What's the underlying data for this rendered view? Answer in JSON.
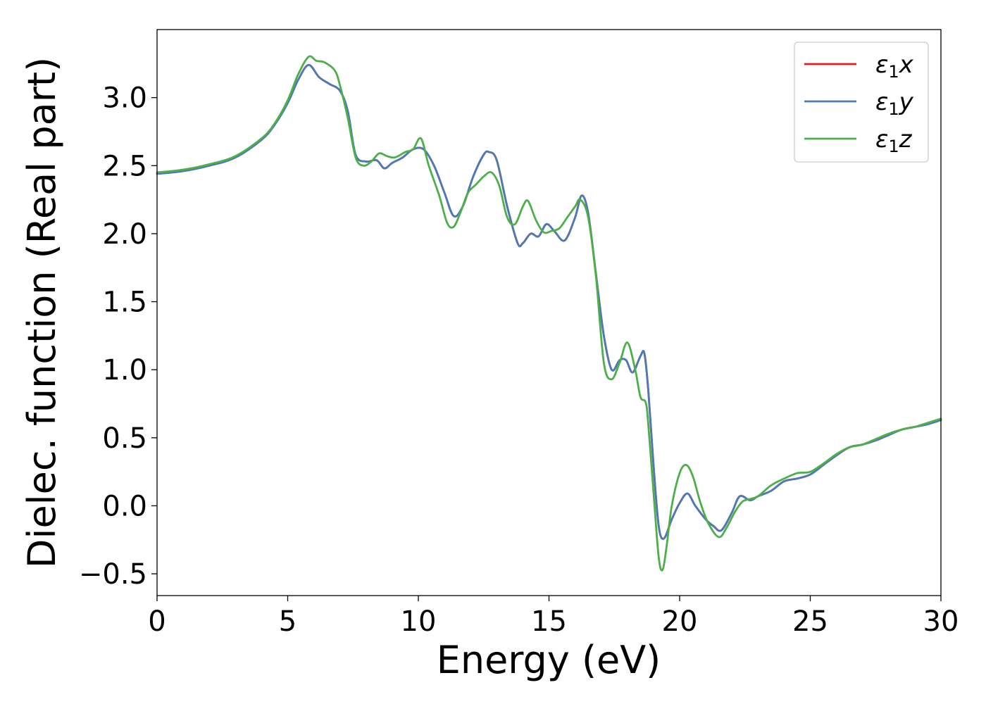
{
  "chart_data": {
    "type": "line",
    "xlabel": "Energy (eV)",
    "ylabel": "Dielec. function (Real part)",
    "xlim": [
      0,
      30
    ],
    "ylim": [
      -0.66,
      3.5
    ],
    "x_ticks": [
      0,
      5,
      10,
      15,
      20,
      25,
      30
    ],
    "x_tick_labels": [
      "0",
      "5",
      "10",
      "15",
      "20",
      "25",
      "30"
    ],
    "y_ticks": [
      -0.5,
      0.0,
      0.5,
      1.0,
      1.5,
      2.0,
      2.5,
      3.0
    ],
    "y_tick_labels": [
      "−0.5",
      "0.0",
      "0.5",
      "1.0",
      "1.5",
      "2.0",
      "2.5",
      "3.0"
    ],
    "grid": false,
    "legend_position": "top-right",
    "series": [
      {
        "name": "ε1x",
        "legend_symbol": "ε",
        "legend_sub": "1",
        "legend_var": "x",
        "color": "#e41a1c",
        "x": [
          0,
          1,
          2,
          3,
          4,
          4.5,
          5,
          5.4,
          5.8,
          6.2,
          6.6,
          7.0,
          7.3,
          7.6,
          8.0,
          8.4,
          8.7,
          9.0,
          9.4,
          9.8,
          10.2,
          10.6,
          11.0,
          11.35,
          11.7,
          12.1,
          12.5,
          12.7,
          13.0,
          13.4,
          13.8,
          14.0,
          14.3,
          14.6,
          14.9,
          15.2,
          15.6,
          16.0,
          16.25,
          16.5,
          16.8,
          17.1,
          17.4,
          17.7,
          17.95,
          18.2,
          18.5,
          18.65,
          18.8,
          19.0,
          19.2,
          19.4,
          19.7,
          20.0,
          20.3,
          20.6,
          21.0,
          21.3,
          21.6,
          22.0,
          22.3,
          22.7,
          23.0,
          23.5,
          24.0,
          24.5,
          25.0,
          25.5,
          26.0,
          26.5,
          27.0,
          27.5,
          28.0,
          28.5,
          29.0,
          29.5,
          30.0
        ],
        "y": [
          2.44,
          2.46,
          2.5,
          2.56,
          2.69,
          2.8,
          2.96,
          3.13,
          3.24,
          3.15,
          3.1,
          3.05,
          2.9,
          2.58,
          2.53,
          2.54,
          2.48,
          2.52,
          2.56,
          2.62,
          2.62,
          2.5,
          2.3,
          2.13,
          2.2,
          2.42,
          2.58,
          2.6,
          2.54,
          2.2,
          1.93,
          1.93,
          2.0,
          1.98,
          2.07,
          2.02,
          1.95,
          2.12,
          2.28,
          2.15,
          1.7,
          1.25,
          1.0,
          1.07,
          1.07,
          0.98,
          1.1,
          1.12,
          0.85,
          0.3,
          -0.15,
          -0.24,
          -0.1,
          0.02,
          0.09,
          0.0,
          -0.1,
          -0.15,
          -0.18,
          -0.05,
          0.07,
          0.04,
          0.07,
          0.11,
          0.18,
          0.2,
          0.23,
          0.3,
          0.37,
          0.43,
          0.45,
          0.48,
          0.52,
          0.56,
          0.58,
          0.6,
          0.63
        ]
      },
      {
        "name": "ε1y",
        "legend_symbol": "ε",
        "legend_sub": "1",
        "legend_var": "y",
        "color": "#4a7bb7",
        "x": [
          0,
          1,
          2,
          3,
          4,
          4.5,
          5,
          5.4,
          5.8,
          6.2,
          6.6,
          7.0,
          7.3,
          7.6,
          8.0,
          8.4,
          8.7,
          9.0,
          9.4,
          9.8,
          10.2,
          10.6,
          11.0,
          11.35,
          11.7,
          12.1,
          12.5,
          12.7,
          13.0,
          13.4,
          13.8,
          14.0,
          14.3,
          14.6,
          14.9,
          15.2,
          15.6,
          16.0,
          16.25,
          16.5,
          16.8,
          17.1,
          17.4,
          17.7,
          17.95,
          18.2,
          18.5,
          18.65,
          18.8,
          19.0,
          19.2,
          19.4,
          19.7,
          20.0,
          20.3,
          20.6,
          21.0,
          21.3,
          21.6,
          22.0,
          22.3,
          22.7,
          23.0,
          23.5,
          24.0,
          24.5,
          25.0,
          25.5,
          26.0,
          26.5,
          27.0,
          27.5,
          28.0,
          28.5,
          29.0,
          29.5,
          30.0
        ],
        "y": [
          2.44,
          2.46,
          2.5,
          2.56,
          2.69,
          2.8,
          2.96,
          3.13,
          3.24,
          3.15,
          3.1,
          3.05,
          2.9,
          2.58,
          2.53,
          2.54,
          2.48,
          2.52,
          2.56,
          2.62,
          2.62,
          2.5,
          2.3,
          2.13,
          2.2,
          2.42,
          2.58,
          2.6,
          2.54,
          2.2,
          1.93,
          1.93,
          2.0,
          1.98,
          2.07,
          2.02,
          1.95,
          2.12,
          2.28,
          2.15,
          1.7,
          1.25,
          1.0,
          1.07,
          1.07,
          0.98,
          1.1,
          1.12,
          0.85,
          0.3,
          -0.15,
          -0.24,
          -0.1,
          0.02,
          0.09,
          0.0,
          -0.1,
          -0.15,
          -0.18,
          -0.05,
          0.07,
          0.04,
          0.07,
          0.11,
          0.18,
          0.2,
          0.23,
          0.3,
          0.37,
          0.43,
          0.45,
          0.48,
          0.52,
          0.56,
          0.58,
          0.6,
          0.63
        ]
      },
      {
        "name": "ε1z",
        "legend_symbol": "ε",
        "legend_sub": "1",
        "legend_var": "z",
        "color": "#4daf4a",
        "x": [
          0,
          1,
          2,
          3,
          4,
          4.5,
          5,
          5.4,
          5.8,
          6.1,
          6.4,
          6.8,
          7.0,
          7.3,
          7.6,
          7.9,
          8.2,
          8.5,
          8.8,
          9.1,
          9.5,
          9.8,
          10.1,
          10.4,
          10.8,
          11.1,
          11.35,
          11.6,
          11.9,
          12.2,
          12.5,
          12.8,
          13.1,
          13.4,
          13.7,
          14.0,
          14.2,
          14.5,
          14.8,
          15.1,
          15.4,
          15.7,
          16.0,
          16.2,
          16.5,
          16.8,
          17.1,
          17.4,
          17.7,
          18.0,
          18.3,
          18.5,
          18.7,
          18.8,
          19.0,
          19.2,
          19.35,
          19.5,
          19.7,
          20.0,
          20.25,
          20.5,
          20.8,
          21.1,
          21.5,
          21.8,
          22.1,
          22.4,
          22.7,
          23.0,
          23.5,
          24.0,
          24.5,
          25.0,
          25.5,
          26.0,
          26.5,
          27.0,
          27.5,
          28.0,
          28.5,
          29.0,
          29.5,
          30.0
        ],
        "y": [
          2.45,
          2.47,
          2.51,
          2.57,
          2.7,
          2.81,
          2.98,
          3.17,
          3.3,
          3.27,
          3.26,
          3.2,
          3.09,
          2.85,
          2.56,
          2.5,
          2.53,
          2.59,
          2.57,
          2.56,
          2.6,
          2.62,
          2.7,
          2.5,
          2.28,
          2.08,
          2.05,
          2.15,
          2.3,
          2.36,
          2.42,
          2.45,
          2.35,
          2.12,
          2.07,
          2.2,
          2.24,
          2.1,
          2.01,
          2.02,
          2.04,
          2.12,
          2.2,
          2.25,
          2.12,
          1.68,
          1.05,
          0.93,
          1.05,
          1.2,
          1.0,
          0.8,
          0.76,
          0.6,
          0.1,
          -0.38,
          -0.47,
          -0.3,
          0.0,
          0.24,
          0.3,
          0.22,
          0.02,
          -0.13,
          -0.23,
          -0.16,
          -0.05,
          0.03,
          0.05,
          0.07,
          0.15,
          0.2,
          0.24,
          0.25,
          0.31,
          0.38,
          0.43,
          0.45,
          0.49,
          0.53,
          0.56,
          0.58,
          0.61,
          0.64
        ]
      }
    ]
  }
}
